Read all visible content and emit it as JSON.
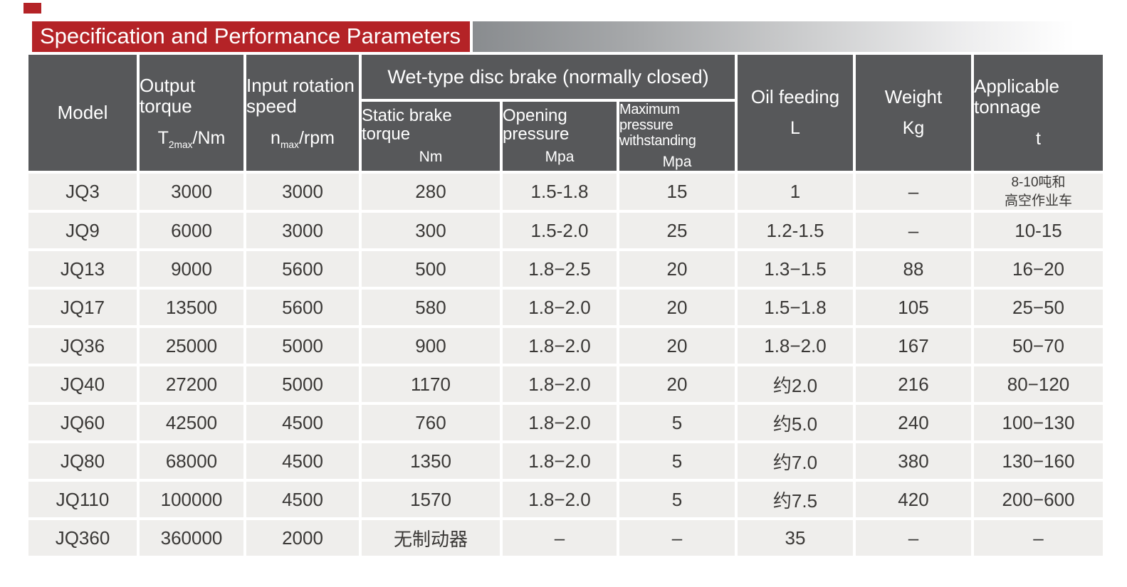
{
  "title": "Specification and Performance Parameters",
  "colors": {
    "accent_red": "#b42327",
    "header_gray": "#57585a",
    "cell_bg": "#efeeec"
  },
  "table": {
    "group_header": "Wet-type disc brake (normally closed)",
    "columns": [
      {
        "label": "Model",
        "unit": ""
      },
      {
        "label": "Output torque",
        "unit_prefix": "T",
        "unit_sub": "2max",
        "unit_suffix": "/Nm"
      },
      {
        "label": "Input rotation speed",
        "unit_prefix": "n",
        "unit_sub": "max",
        "unit_suffix": "/rpm"
      },
      {
        "label": "Static brake torque",
        "unit": "Nm"
      },
      {
        "label": "Opening pressure",
        "unit": "Mpa"
      },
      {
        "label": "Maximum pressure withstanding",
        "unit": "Mpa"
      },
      {
        "label": "Oil feeding",
        "unit": "L"
      },
      {
        "label": "Weight",
        "unit": "Kg"
      },
      {
        "label": "Applicable tonnage",
        "unit": "t"
      }
    ],
    "rows": [
      {
        "cells": [
          "JQ3",
          "3000",
          "3000",
          "280",
          "1.5-1.8",
          "15",
          "1",
          "–",
          "8-10吨和\n高空作业车"
        ]
      },
      {
        "cells": [
          "JQ9",
          "6000",
          "3000",
          "300",
          "1.5-2.0",
          "25",
          "1.2-1.5",
          "–",
          "10-15"
        ]
      },
      {
        "cells": [
          "JQ13",
          "9000",
          "5600",
          "500",
          "1.8−2.5",
          "20",
          "1.3−1.5",
          "88",
          "16−20"
        ]
      },
      {
        "cells": [
          "JQ17",
          "13500",
          "5600",
          "580",
          "1.8−2.0",
          "20",
          "1.5−1.8",
          "105",
          "25−50"
        ]
      },
      {
        "cells": [
          "JQ36",
          "25000",
          "5000",
          "900",
          "1.8−2.0",
          "20",
          "1.8−2.0",
          "167",
          "50−70"
        ]
      },
      {
        "cells": [
          "JQ40",
          "27200",
          "5000",
          "1170",
          "1.8−2.0",
          "20",
          "约2.0",
          "216",
          "80−120"
        ]
      },
      {
        "cells": [
          "JQ60",
          "42500",
          "4500",
          "760",
          "1.8−2.0",
          "5",
          "约5.0",
          "240",
          "100−130"
        ]
      },
      {
        "cells": [
          "JQ80",
          "68000",
          "4500",
          "1350",
          "1.8−2.0",
          "5",
          "约7.0",
          "380",
          "130−160"
        ]
      },
      {
        "cells": [
          "JQ110",
          "100000",
          "4500",
          "1570",
          "1.8−2.0",
          "5",
          "约7.5",
          "420",
          "200−600"
        ]
      },
      {
        "cells": [
          "JQ360",
          "360000",
          "2000",
          "无制动器",
          "–",
          "–",
          "35",
          "–",
          "–"
        ]
      }
    ]
  }
}
